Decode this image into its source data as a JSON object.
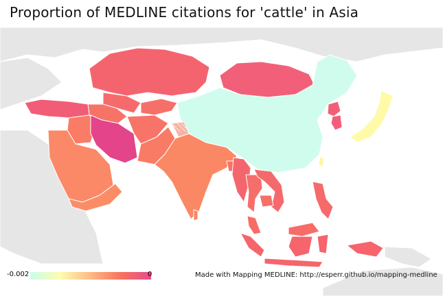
{
  "title": "Proportion of MEDLINE citations for 'cattle' in Asia",
  "credit": "Made with Mapping MEDLINE: http://esperr.github.io/mapping-medline",
  "legend": {
    "min_label": "-0.002",
    "max_label": "0",
    "colors": [
      "#c9fdea",
      "#fdfbb0",
      "#fdba82",
      "#f7735c",
      "#e84b8c"
    ]
  },
  "colors": {
    "land_background": "#e6e6e6",
    "country_border": "#ffffff",
    "china": "#d0fced",
    "japan": "#fefaa8",
    "iran": "#e3448a",
    "mongolia_kazakhstan": "#f26077",
    "middle_east_south_asia": "#fa8766",
    "southeast_asia": "#f76e66"
  }
}
